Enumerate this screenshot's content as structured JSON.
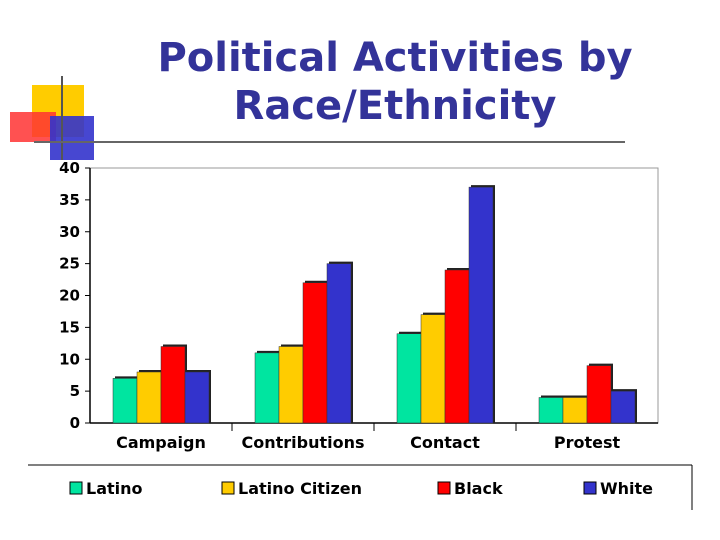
{
  "title_line1": "Political Activities by",
  "title_line2": "Race/Ethnicity",
  "colors": {
    "title": "#333399",
    "latino": "#00E5A0",
    "latino_citizen": "#FFCC00",
    "black": "#FF0000",
    "white": "#3333CC",
    "deco_yellow": "#FFCC00",
    "deco_red": "#FF3333",
    "deco_blue": "#3333CC"
  },
  "chart_data": {
    "type": "bar",
    "title": "Political Activities by Race/Ethnicity",
    "categories": [
      "Campaign",
      "Contributions",
      "Contact",
      "Protest"
    ],
    "series": [
      {
        "name": "Latino",
        "color": "#00E5A0",
        "values": [
          7,
          11,
          14,
          4
        ]
      },
      {
        "name": "Latino Citizen",
        "color": "#FFCC00",
        "values": [
          8,
          12,
          17,
          4
        ]
      },
      {
        "name": "Black",
        "color": "#FF0000",
        "values": [
          12,
          22,
          24,
          9
        ]
      },
      {
        "name": "White",
        "color": "#3333CC",
        "values": [
          8,
          25,
          37,
          5
        ]
      }
    ],
    "ylim": [
      0,
      40
    ],
    "yticks": [
      "0",
      "5",
      "10",
      "15",
      "20",
      "25",
      "30",
      "35",
      "40"
    ],
    "xlabel": "",
    "ylabel": "",
    "legend": "bottom",
    "grid": false
  }
}
